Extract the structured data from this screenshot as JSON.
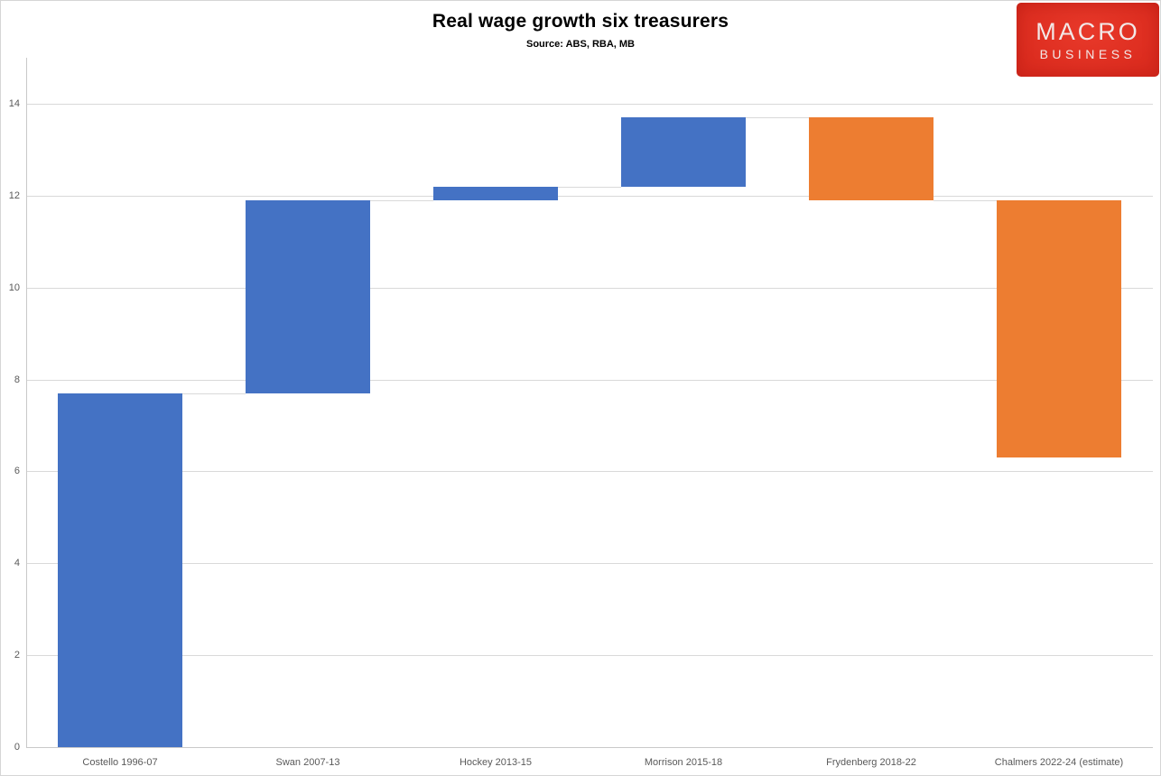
{
  "title": "Real wage growth six treasurers",
  "subtitle": "Source: ABS, RBA, MB",
  "logo": {
    "line1": "MACRO",
    "line2": "BUSINESS",
    "bg_color": "#DB2B1E",
    "bg_color_light": "#E8392A",
    "text_color": "#F2E8E7"
  },
  "chart_data": {
    "type": "bar",
    "subtype": "waterfall",
    "title": "Real wage growth six treasurers",
    "subtitle": "Source: ABS, RBA, MB",
    "categories": [
      "Costello 1996-07",
      "Swan 2007-13",
      "Hockey 2013-15",
      "Morrison 2015-18",
      "Frydenberg 2018-22",
      "Chalmers 2022-24 (estimate)"
    ],
    "bars": [
      {
        "label": "Costello 1996-07",
        "start": 0,
        "end": 7.7,
        "change": 7.7,
        "direction": "increase"
      },
      {
        "label": "Swan 2007-13",
        "start": 7.7,
        "end": 11.9,
        "change": 4.2,
        "direction": "increase"
      },
      {
        "label": "Hockey 2013-15",
        "start": 11.9,
        "end": 12.2,
        "change": 0.3,
        "direction": "increase"
      },
      {
        "label": "Morrison 2015-18",
        "start": 12.2,
        "end": 13.7,
        "change": 1.5,
        "direction": "increase"
      },
      {
        "label": "Frydenberg 2018-22",
        "start": 13.7,
        "end": 11.9,
        "change": -1.8,
        "direction": "decrease"
      },
      {
        "label": "Chalmers 2022-24 (estimate)",
        "start": 11.9,
        "end": 6.3,
        "change": -5.6,
        "direction": "decrease"
      }
    ],
    "yticks": [
      0,
      2,
      4,
      6,
      8,
      10,
      12,
      14
    ],
    "ylim": [
      0,
      15
    ],
    "grid": true,
    "legend": "none",
    "xlabel": "",
    "ylabel": "",
    "colors": {
      "increase": "#4472C4",
      "decrease": "#ED7D31",
      "gridline": "#D9D9D9",
      "axis_line": "#C9C9C9",
      "connector": "#D9D9D9",
      "tick_label": "#595959"
    }
  }
}
